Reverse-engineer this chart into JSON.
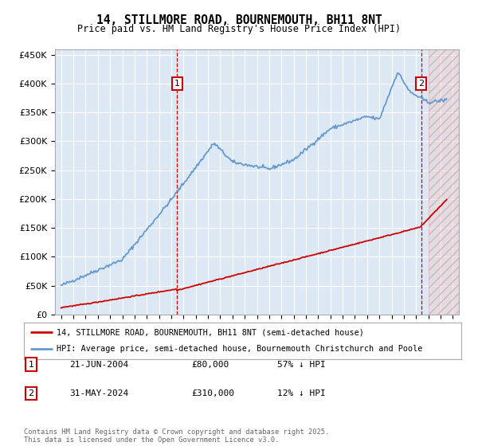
{
  "title": "14, STILLMORE ROAD, BOURNEMOUTH, BH11 8NT",
  "subtitle": "Price paid vs. HM Land Registry's House Price Index (HPI)",
  "plot_bg_color": "#dce9f5",
  "hpi_color": "#6699cc",
  "price_color": "#cc0000",
  "ylim": [
    0,
    460000
  ],
  "yticks": [
    0,
    50000,
    100000,
    150000,
    200000,
    250000,
    300000,
    350000,
    400000,
    450000
  ],
  "xlim_start": 1994.5,
  "xlim_end": 2027.5,
  "sale1_x": 2004.47,
  "sale1_y": 80000,
  "sale2_x": 2024.41,
  "sale2_y": 310000,
  "legend_line1": "14, STILLMORE ROAD, BOURNEMOUTH, BH11 8NT (semi-detached house)",
  "legend_line2": "HPI: Average price, semi-detached house, Bournemouth Christchurch and Poole",
  "annotation1_date": "21-JUN-2004",
  "annotation1_price": "£80,000",
  "annotation1_hpi": "57% ↓ HPI",
  "annotation2_date": "31-MAY-2024",
  "annotation2_price": "£310,000",
  "annotation2_hpi": "12% ↓ HPI",
  "footer": "Contains HM Land Registry data © Crown copyright and database right 2025.\nThis data is licensed under the Open Government Licence v3.0.",
  "hatch_start": 2025.0
}
